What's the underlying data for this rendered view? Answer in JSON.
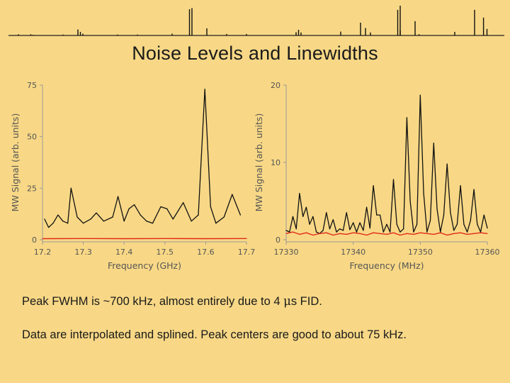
{
  "slide": {
    "title": "Noise Levels and Linewidths",
    "caption_fwhm_before": "Peak FWHM is ~700 kHz, almost entirely due to 4 ",
    "caption_fwhm_mu": "μ",
    "caption_fwhm_after": "s FID.",
    "caption_interp": "Data are interpolated and splined. Peak centers are good to about 75 kHz."
  },
  "colors": {
    "background": "#f8d886",
    "signal": "#111111",
    "noise": "#e02a1a",
    "axis": "#9a9a9a"
  },
  "top_strip": {
    "type": "line",
    "x": [
      0.02,
      0.045,
      0.05,
      0.11,
      0.14,
      0.145,
      0.15,
      0.22,
      0.26,
      0.33,
      0.365,
      0.37,
      0.4,
      0.44,
      0.48,
      0.58,
      0.585,
      0.59,
      0.67,
      0.71,
      0.72,
      0.73,
      0.785,
      0.79,
      0.79,
      0.82,
      0.828,
      0.9,
      0.94,
      0.958,
      0.965
    ],
    "values": [
      0.04,
      0.04,
      0.02,
      0.03,
      0.2,
      0.12,
      0.06,
      0.03,
      0.03,
      0.06,
      0.88,
      0.92,
      0.24,
      0.05,
      0.05,
      0.11,
      0.19,
      0.1,
      0.13,
      0.43,
      0.25,
      0.1,
      0.86,
      1.0,
      0.16,
      0.48,
      0.04,
      0.12,
      0.86,
      0.6,
      0.22
    ]
  },
  "chart_data": [
    {
      "type": "line",
      "xlabel": "Frequency (GHz)",
      "ylabel": "MW Signal (arb. units)",
      "xlim": [
        17.2,
        17.7
      ],
      "ylim": [
        0,
        75
      ],
      "xticks": [
        "17.2",
        "17.3",
        "17.4",
        "17.5",
        "17.6",
        "17.7"
      ],
      "yticks": [
        "0",
        "25",
        "50",
        "75"
      ],
      "grid": false,
      "legend": "none",
      "series": [
        {
          "color": "#111111",
          "x": [
            17.205,
            17.215,
            17.226,
            17.238,
            17.25,
            17.262,
            17.27,
            17.285,
            17.3,
            17.318,
            17.332,
            17.35,
            17.372,
            17.385,
            17.4,
            17.412,
            17.425,
            17.44,
            17.455,
            17.47,
            17.49,
            17.505,
            17.52,
            17.545,
            17.565,
            17.582,
            17.598,
            17.612,
            17.625,
            17.645,
            17.665,
            17.685
          ],
          "values": [
            10,
            6,
            8,
            12,
            9,
            8,
            25,
            11,
            8,
            10,
            13,
            9,
            11,
            21,
            9,
            15,
            17,
            12,
            9,
            8,
            16,
            15,
            10,
            18,
            9,
            12,
            73,
            16,
            8,
            11,
            22,
            12
          ]
        },
        {
          "color": "#e02a1a",
          "x": [
            17.2,
            17.3,
            17.4,
            17.5,
            17.6,
            17.7
          ],
          "values": [
            0.5,
            0.6,
            0.5,
            0.6,
            0.5,
            0.6
          ]
        }
      ]
    },
    {
      "type": "line",
      "xlabel": "Frequency (MHz)",
      "ylabel": "MW Signal (arb. units)",
      "xlim": [
        17330,
        17360
      ],
      "ylim": [
        0,
        20
      ],
      "xticks": [
        "17330",
        "17340",
        "17350",
        "17360"
      ],
      "yticks": [
        "0",
        "10",
        "20"
      ],
      "grid": false,
      "legend": "none",
      "series": [
        {
          "color": "#111111",
          "x": [
            17330,
            17330.5,
            17331,
            17331.5,
            17332,
            17332.5,
            17333,
            17333.5,
            17334,
            17334.5,
            17335,
            17335.5,
            17336,
            17336.5,
            17337,
            17337.5,
            17338,
            17338.5,
            17339,
            17339.5,
            17340,
            17340.5,
            17341,
            17341.5,
            17342,
            17342.5,
            17343,
            17343.5,
            17344,
            17344.5,
            17345,
            17345.5,
            17346,
            17346.5,
            17347,
            17347.5,
            17348,
            17348.5,
            17349,
            17349.5,
            17350,
            17350.5,
            17351,
            17351.5,
            17352,
            17352.5,
            17353,
            17353.5,
            17354,
            17354.5,
            17355,
            17355.5,
            17356,
            17356.5,
            17357,
            17357.5,
            17358,
            17358.5,
            17359,
            17359.5,
            17360
          ],
          "values": [
            1.2,
            1.0,
            3.0,
            1.4,
            6.0,
            3.0,
            4.2,
            2.0,
            3.0,
            1.0,
            0.8,
            1.2,
            3.5,
            1.4,
            2.6,
            1.0,
            1.4,
            1.2,
            3.5,
            1.3,
            2.2,
            1.0,
            2.2,
            1.2,
            4.2,
            1.5,
            7.0,
            3.2,
            3.2,
            1.0,
            2.0,
            1.0,
            7.8,
            2.0,
            1.0,
            1.4,
            15.8,
            5.0,
            1.0,
            2.0,
            18.7,
            6.0,
            1.0,
            2.5,
            12.5,
            4.0,
            1.0,
            3.2,
            9.8,
            3.5,
            1.2,
            2.0,
            7.0,
            2.0,
            1.0,
            2.5,
            6.5,
            2.0,
            1.0,
            3.2,
            1.5
          ]
        },
        {
          "color": "#e02a1a",
          "x": [
            17330,
            17331,
            17332,
            17333,
            17334,
            17335,
            17336,
            17337,
            17338,
            17339,
            17340,
            17341,
            17342,
            17343,
            17344,
            17345,
            17346,
            17347,
            17348,
            17349,
            17350,
            17351,
            17352,
            17353,
            17354,
            17355,
            17356,
            17357,
            17358,
            17359,
            17360
          ],
          "values": [
            0.8,
            1.0,
            0.7,
            0.9,
            0.6,
            0.8,
            0.9,
            0.6,
            0.8,
            0.7,
            0.9,
            0.8,
            0.6,
            0.9,
            0.8,
            0.7,
            0.9,
            0.6,
            0.8,
            0.7,
            0.9,
            0.8,
            0.7,
            0.9,
            0.6,
            0.8,
            0.9,
            0.7,
            0.8,
            0.9,
            0.8
          ]
        }
      ]
    }
  ]
}
